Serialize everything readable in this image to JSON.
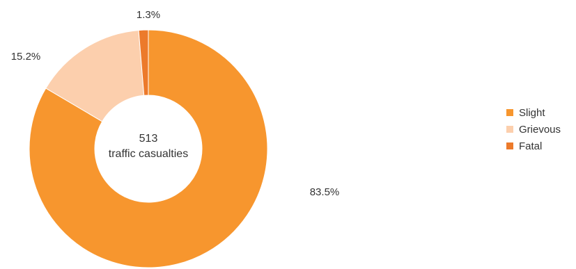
{
  "chart_data": {
    "type": "pie",
    "variant": "donut",
    "categories": [
      "Slight",
      "Grievous",
      "Fatal"
    ],
    "values": [
      83.5,
      15.2,
      1.3
    ],
    "value_labels": [
      "83.5%",
      "15.2%",
      "1.3%"
    ],
    "colors": [
      "#f7962e",
      "#fccfad",
      "#ec7a2b"
    ],
    "center_text": {
      "value": "513",
      "label": "traffic casualties"
    },
    "legend_position": "right"
  }
}
